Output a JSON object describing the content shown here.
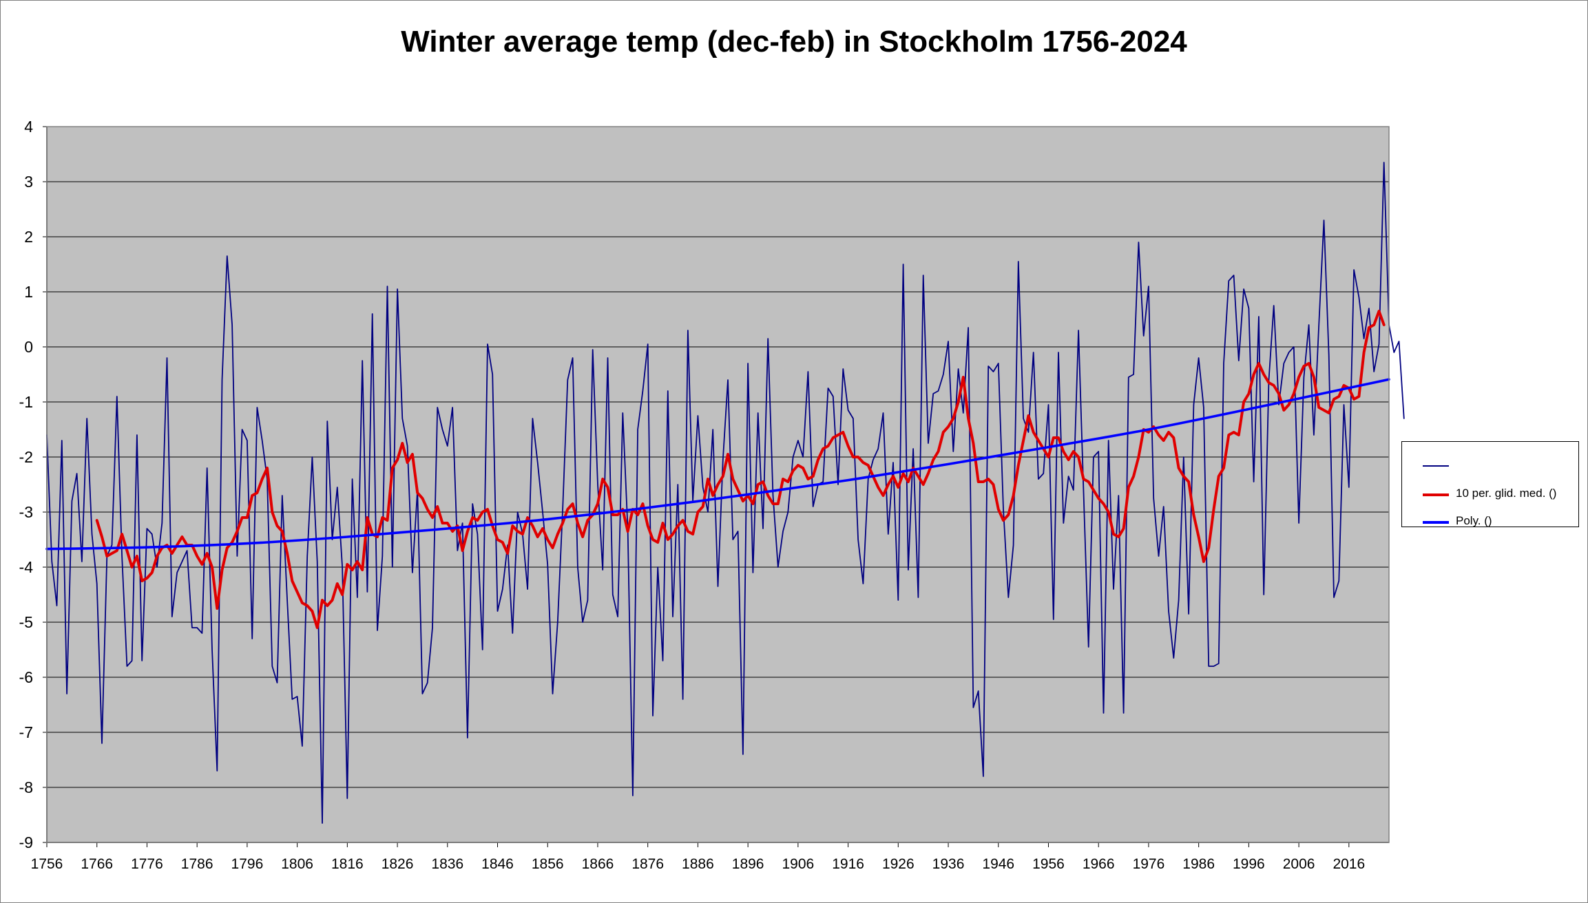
{
  "chart_data": {
    "type": "line",
    "title": "Winter average temp (dec-feb) in Stockholm 1756-2024",
    "xlabel": "",
    "ylabel": "",
    "xlim": [
      1756,
      2024
    ],
    "ylim": [
      -9,
      4
    ],
    "x_ticks": [
      "1756",
      "1766",
      "1776",
      "1786",
      "1796",
      "1806",
      "1816",
      "1826",
      "1836",
      "1846",
      "1856",
      "1866",
      "1876",
      "1886",
      "1896",
      "1906",
      "1916",
      "1926",
      "1936",
      "1946",
      "1956",
      "1966",
      "1976",
      "1986",
      "1996",
      "2006",
      "2016"
    ],
    "y_ticks": [
      "4",
      "3",
      "2",
      "1",
      "0",
      "-1",
      "-2",
      "-3",
      "-4",
      "-5",
      "-6",
      "-7",
      "-8",
      "-9"
    ],
    "grid": "horizontal",
    "background": "#c0c0c0",
    "legend_position": "right",
    "x_start": 1756,
    "series": [
      {
        "name": "",
        "color": "#000080",
        "values": [
          -1.6,
          -3.9,
          -4.7,
          -1.7,
          -6.3,
          -2.8,
          -2.3,
          -3.9,
          -1.3,
          -3.4,
          -4.3,
          -7.2,
          -3.8,
          -3.6,
          -0.9,
          -3.8,
          -5.8,
          -5.7,
          -1.6,
          -5.7,
          -3.3,
          -3.4,
          -4.0,
          -3.2,
          -0.2,
          -4.9,
          -4.1,
          -3.9,
          -3.7,
          -5.1,
          -5.1,
          -5.2,
          -2.2,
          -5.5,
          -7.7,
          -0.6,
          1.65,
          0.4,
          -3.8,
          -1.5,
          -1.7,
          -5.3,
          -1.1,
          -1.7,
          -2.4,
          -5.8,
          -6.1,
          -2.7,
          -4.6,
          -6.4,
          -6.35,
          -7.25,
          -3.8,
          -2.0,
          -3.9,
          -8.65,
          -1.35,
          -3.5,
          -2.55,
          -4.0,
          -8.2,
          -2.4,
          -4.55,
          -0.25,
          -4.45,
          0.6,
          -5.15,
          -3.8,
          1.1,
          -4.0,
          1.05,
          -1.3,
          -1.8,
          -4.1,
          -2.6,
          -6.3,
          -6.1,
          -5.1,
          -1.1,
          -1.5,
          -1.8,
          -1.1,
          -3.7,
          -3.2,
          -7.1,
          -2.85,
          -3.4,
          -5.5,
          0.05,
          -0.5,
          -4.8,
          -4.4,
          -3.6,
          -5.2,
          -3.0,
          -3.4,
          -4.4,
          -1.3,
          -2.1,
          -3.0,
          -3.95,
          -6.3,
          -5.0,
          -2.95,
          -0.6,
          -0.2,
          -4.0,
          -5.0,
          -4.6,
          -0.05,
          -2.5,
          -4.05,
          -0.2,
          -4.5,
          -4.9,
          -1.2,
          -3.3,
          -8.15,
          -1.5,
          -0.8,
          0.05,
          -6.7,
          -4.0,
          -5.7,
          -0.8,
          -4.9,
          -2.5,
          -6.4,
          0.3,
          -2.8,
          -1.25,
          -2.55,
          -3.0,
          -1.5,
          -4.35,
          -2.05,
          -0.6,
          -3.5,
          -3.35,
          -7.4,
          -0.3,
          -4.1,
          -1.2,
          -3.3,
          0.15,
          -2.7,
          -4.0,
          -3.35,
          -3.0,
          -2.0,
          -1.7,
          -2.0,
          -0.45,
          -2.9,
          -2.5,
          -2.45,
          -0.75,
          -0.9,
          -2.5,
          -0.4,
          -1.15,
          -1.3,
          -3.5,
          -4.3,
          -2.4,
          -2.05,
          -1.85,
          -1.2,
          -3.4,
          -2.1,
          -4.6,
          1.5,
          -4.05,
          -1.85,
          -4.55,
          1.3,
          -1.75,
          -0.85,
          -0.8,
          -0.5,
          0.1,
          -1.9,
          -0.4,
          -1.2,
          0.35,
          -6.55,
          -6.25,
          -7.8,
          -0.35,
          -0.45,
          -0.3,
          -2.95,
          -4.55,
          -3.6,
          1.55,
          -1.3,
          -1.55,
          -0.1,
          -2.4,
          -2.3,
          -1.05,
          -4.95,
          -0.1,
          -3.2,
          -2.35,
          -2.6,
          0.3,
          -2.6,
          -5.45,
          -2.0,
          -1.9,
          -6.65,
          -1.7,
          -4.4,
          -2.7,
          -6.65,
          -0.55,
          -0.5,
          1.9,
          0.2,
          1.1,
          -2.75,
          -3.8,
          -2.9,
          -4.8,
          -5.65,
          -4.6,
          -2.0,
          -4.85,
          -1.05,
          -0.2,
          -1.1,
          -5.8,
          -5.8,
          -5.75,
          -0.3,
          1.2,
          1.3,
          -0.25,
          1.05,
          0.7,
          -2.45,
          0.55,
          -4.5,
          -0.6,
          0.75,
          -1.05,
          -0.3,
          -0.1,
          0.0,
          -3.2,
          -0.55,
          0.4,
          -1.6,
          0.4,
          2.3,
          -0.15,
          -4.55,
          -4.25,
          -1.05,
          -2.55,
          1.4,
          0.9,
          0.15,
          0.7,
          -0.45,
          0.05,
          3.35,
          0.4,
          -0.1,
          0.1,
          -1.3
        ]
      },
      {
        "name": "10 per. glid. med. ()",
        "color": "#e00000",
        "values": [
          -3.15,
          -3.45,
          -3.8,
          -3.75,
          -3.7,
          -3.4,
          -3.7,
          -4.0,
          -3.8,
          -4.25,
          -4.2,
          -4.1,
          -3.8,
          -3.65,
          -3.6,
          -3.75,
          -3.6,
          -3.45,
          -3.6,
          -3.6,
          -3.8,
          -3.95,
          -3.75,
          -4.0,
          -4.75,
          -4.05,
          -3.65,
          -3.55,
          -3.35,
          -3.1,
          -3.1,
          -2.7,
          -2.65,
          -2.4,
          -2.2,
          -3.0,
          -3.25,
          -3.35,
          -3.75,
          -4.25,
          -4.45,
          -4.65,
          -4.7,
          -4.8,
          -5.1,
          -4.6,
          -4.7,
          -4.6,
          -4.3,
          -4.5,
          -3.95,
          -4.05,
          -3.9,
          -4.05,
          -3.1,
          -3.4,
          -3.45,
          -3.1,
          -3.15,
          -2.2,
          -2.05,
          -1.75,
          -2.1,
          -1.95,
          -2.65,
          -2.75,
          -2.95,
          -3.1,
          -2.9,
          -3.2,
          -3.2,
          -3.35,
          -3.25,
          -3.7,
          -3.35,
          -3.1,
          -3.15,
          -3.0,
          -2.95,
          -3.25,
          -3.5,
          -3.55,
          -3.75,
          -3.25,
          -3.35,
          -3.4,
          -3.1,
          -3.25,
          -3.45,
          -3.3,
          -3.5,
          -3.65,
          -3.4,
          -3.2,
          -2.95,
          -2.85,
          -3.2,
          -3.45,
          -3.15,
          -3.05,
          -2.85,
          -2.4,
          -2.55,
          -3.05,
          -3.05,
          -2.95,
          -3.35,
          -2.95,
          -3.05,
          -2.85,
          -3.25,
          -3.5,
          -3.55,
          -3.2,
          -3.5,
          -3.4,
          -3.25,
          -3.15,
          -3.35,
          -3.4,
          -3.0,
          -2.9,
          -2.4,
          -2.7,
          -2.5,
          -2.35,
          -1.95,
          -2.4,
          -2.6,
          -2.8,
          -2.7,
          -2.85,
          -2.5,
          -2.45,
          -2.7,
          -2.85,
          -2.85,
          -2.4,
          -2.45,
          -2.25,
          -2.15,
          -2.2,
          -2.4,
          -2.35,
          -2.05,
          -1.85,
          -1.8,
          -1.65,
          -1.6,
          -1.55,
          -1.8,
          -2.0,
          -2.0,
          -2.1,
          -2.15,
          -2.35,
          -2.55,
          -2.7,
          -2.5,
          -2.35,
          -2.55,
          -2.3,
          -2.45,
          -2.2,
          -2.35,
          -2.5,
          -2.3,
          -2.05,
          -1.9,
          -1.55,
          -1.45,
          -1.3,
          -1.0,
          -0.55,
          -1.3,
          -1.75,
          -2.45,
          -2.45,
          -2.4,
          -2.5,
          -2.95,
          -3.15,
          -3.05,
          -2.7,
          -2.15,
          -1.7,
          -1.25,
          -1.55,
          -1.7,
          -1.85,
          -2.0,
          -1.65,
          -1.65,
          -1.9,
          -2.05,
          -1.9,
          -2.0,
          -2.4,
          -2.45,
          -2.6,
          -2.75,
          -2.85,
          -3.0,
          -3.4,
          -3.45,
          -3.3,
          -2.55,
          -2.35,
          -2.0,
          -1.5,
          -1.55,
          -1.45,
          -1.6,
          -1.7,
          -1.55,
          -1.65,
          -2.2,
          -2.35,
          -2.45,
          -3.05,
          -3.45,
          -3.9,
          -3.65,
          -2.95,
          -2.35,
          -2.2,
          -1.6,
          -1.55,
          -1.6,
          -1.0,
          -0.85,
          -0.5,
          -0.3,
          -0.5,
          -0.65,
          -0.7,
          -0.85,
          -1.15,
          -1.05,
          -0.85,
          -0.55,
          -0.35,
          -0.3,
          -0.55,
          -1.1,
          -1.15,
          -1.2,
          -0.95,
          -0.9,
          -0.7,
          -0.75,
          -0.95,
          -0.9,
          -0.1,
          0.35,
          0.4,
          0.65,
          0.4
        ]
      },
      {
        "name": "Poly. ()",
        "color": "#0000ff",
        "values": [
          [
            1756,
            -3.67
          ],
          [
            1776,
            -3.64
          ],
          [
            1796,
            -3.57
          ],
          [
            1816,
            -3.45
          ],
          [
            1836,
            -3.3
          ],
          [
            1856,
            -3.13
          ],
          [
            1876,
            -2.92
          ],
          [
            1896,
            -2.68
          ],
          [
            1916,
            -2.42
          ],
          [
            1936,
            -2.13
          ],
          [
            1956,
            -1.82
          ],
          [
            1976,
            -1.5
          ],
          [
            1996,
            -1.13
          ],
          [
            2024,
            -0.59
          ]
        ]
      }
    ]
  }
}
